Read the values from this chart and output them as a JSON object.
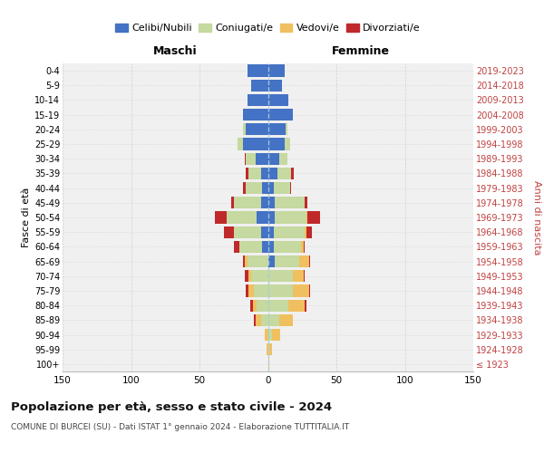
{
  "age_groups": [
    "100+",
    "95-99",
    "90-94",
    "85-89",
    "80-84",
    "75-79",
    "70-74",
    "65-69",
    "60-64",
    "55-59",
    "50-54",
    "45-49",
    "40-44",
    "35-39",
    "30-34",
    "25-29",
    "20-24",
    "15-19",
    "10-14",
    "5-9",
    "0-4"
  ],
  "birth_years": [
    "≤ 1923",
    "1924-1928",
    "1929-1933",
    "1934-1938",
    "1939-1943",
    "1944-1948",
    "1949-1953",
    "1954-1958",
    "1959-1963",
    "1964-1968",
    "1969-1973",
    "1974-1978",
    "1979-1983",
    "1984-1988",
    "1989-1993",
    "1994-1998",
    "1999-2003",
    "2004-2008",
    "2009-2013",
    "2014-2018",
    "2019-2023"
  ],
  "colors": {
    "celibi": "#4472c4",
    "coniugati": "#c5d9a0",
    "vedovi": "#f0c060",
    "divorziati": "#c0292a"
  },
  "maschi": {
    "celibi": [
      0,
      0,
      0,
      0,
      0,
      0,
      0,
      0,
      4,
      5,
      8,
      5,
      4,
      5,
      9,
      18,
      16,
      18,
      15,
      12,
      15
    ],
    "coniugati": [
      0,
      0,
      0,
      5,
      8,
      10,
      12,
      15,
      17,
      20,
      22,
      20,
      12,
      9,
      7,
      4,
      2,
      0,
      0,
      0,
      0
    ],
    "vedovi": [
      0,
      1,
      2,
      4,
      3,
      4,
      2,
      2,
      0,
      0,
      0,
      0,
      0,
      0,
      0,
      0,
      0,
      0,
      0,
      0,
      0
    ],
    "divorziati": [
      0,
      0,
      0,
      1,
      2,
      2,
      3,
      1,
      4,
      7,
      9,
      2,
      2,
      2,
      1,
      0,
      0,
      0,
      0,
      0,
      0
    ]
  },
  "femmine": {
    "celibi": [
      0,
      0,
      0,
      0,
      0,
      0,
      0,
      5,
      4,
      4,
      5,
      5,
      4,
      7,
      8,
      12,
      13,
      18,
      15,
      10,
      12
    ],
    "coniugati": [
      0,
      1,
      3,
      8,
      15,
      18,
      18,
      18,
      20,
      23,
      23,
      22,
      12,
      10,
      6,
      4,
      1,
      0,
      0,
      0,
      0
    ],
    "vedovi": [
      1,
      2,
      6,
      10,
      12,
      12,
      8,
      7,
      2,
      1,
      1,
      0,
      0,
      0,
      0,
      0,
      0,
      0,
      0,
      0,
      0
    ],
    "divorziati": [
      0,
      0,
      0,
      0,
      1,
      1,
      1,
      1,
      1,
      4,
      9,
      2,
      1,
      2,
      0,
      0,
      0,
      0,
      0,
      0,
      0
    ]
  },
  "title": "Popolazione per età, sesso e stato civile - 2024",
  "subtitle": "COMUNE DI BURCEI (SU) - Dati ISTAT 1° gennaio 2024 - Elaborazione TUTTITALIA.IT",
  "xlabel_left": "Maschi",
  "xlabel_right": "Femmine",
  "ylabel_left": "Fasce di età",
  "ylabel_right": "Anni di nascita",
  "xlim": 150,
  "background_color": "#ffffff",
  "grid_color": "#cccccc",
  "facecolor": "#f0f0f0"
}
